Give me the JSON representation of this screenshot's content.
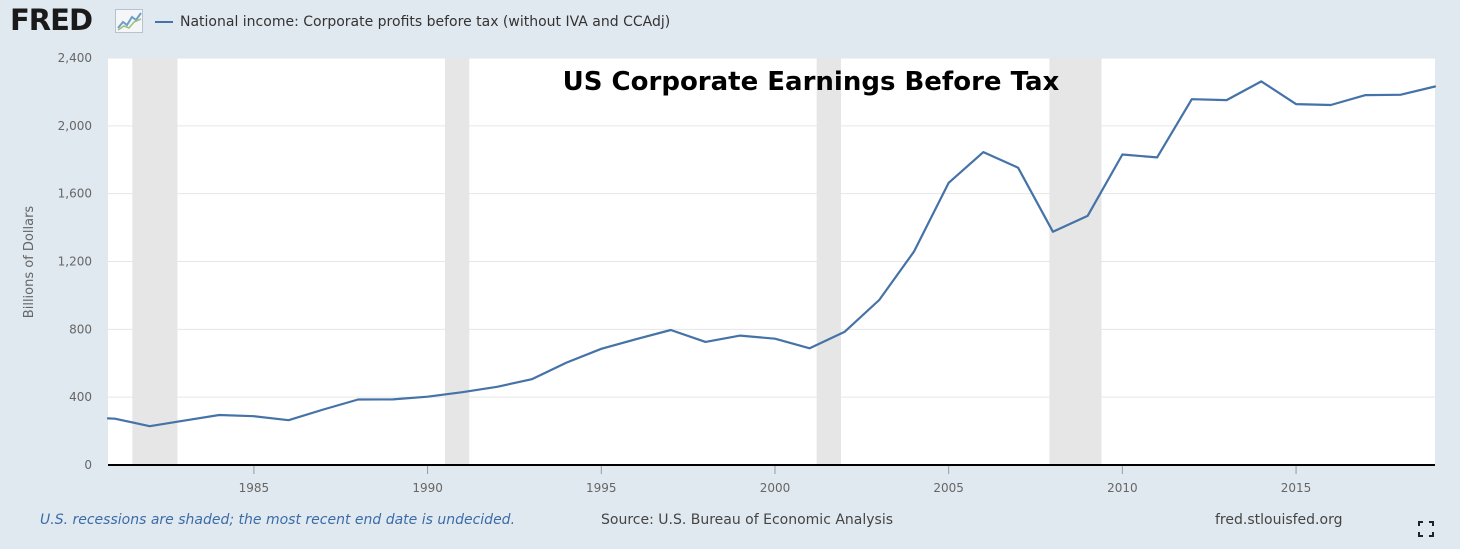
{
  "header": {
    "logo_text": "FRED",
    "logo_icon": "trend-chart-icon",
    "legend_label": "National income: Corporate profits before tax (without IVA and CCAdj)",
    "series_color": "#4572a7"
  },
  "footer": {
    "note": "U.S. recessions are shaded; the most recent end date is undecided.",
    "source": "Source: U.S. Bureau of Economic Analysis",
    "site": "fred.stlouisfed.org",
    "fullscreen_icon": "fullscreen-icon"
  },
  "chart_data": {
    "type": "line",
    "title": "US Corporate Earnings Before Tax",
    "xlabel": "",
    "ylabel": "Billions of Dollars",
    "xlim": [
      1980.8,
      2019
    ],
    "ylim": [
      0,
      2400
    ],
    "yticks": [
      0,
      400,
      800,
      1200,
      1600,
      2000,
      2400
    ],
    "ytick_labels": [
      "0",
      "400",
      "800",
      "1,200",
      "1,600",
      "2,000",
      "2,400"
    ],
    "xticks": [
      1985,
      1990,
      1995,
      2000,
      2005,
      2010,
      2015
    ],
    "xtick_labels": [
      "1985",
      "1990",
      "1995",
      "2000",
      "2005",
      "2010",
      "2015"
    ],
    "grid": true,
    "legend_position": "top-left",
    "recession_color": "#e6e6e6",
    "recessions": [
      [
        1981.5,
        1982.8
      ],
      [
        1990.5,
        1991.2
      ],
      [
        2001.2,
        2001.9
      ],
      [
        2007.9,
        2009.4
      ]
    ],
    "series": [
      {
        "name": "National income: Corporate profits before tax (without IVA and CCAdj)",
        "color": "#4572a7",
        "x": [
          1980.8,
          1981,
          1982,
          1983,
          1984,
          1985,
          1986,
          1987,
          1988,
          1989,
          1990,
          1991,
          1992,
          1993,
          1994,
          1995,
          1996,
          1997,
          1998,
          1999,
          2000,
          2001,
          2002,
          2003,
          2004,
          2005,
          2006,
          2007,
          2008,
          2009,
          2010,
          2011,
          2012,
          2013,
          2014,
          2015,
          2016,
          2017,
          2018,
          2019
        ],
        "y": [
          275,
          273,
          229,
          262,
          295,
          288,
          264,
          327,
          386,
          387,
          403,
          429,
          461,
          506,
          604,
          685,
          742,
          796,
          726,
          763,
          745,
          688,
          785,
          973,
          1258,
          1664,
          1845,
          1753,
          1376,
          1469,
          1831,
          1814,
          2157,
          2152,
          2262,
          2128,
          2123,
          2181,
          2183,
          2232
        ]
      }
    ]
  }
}
